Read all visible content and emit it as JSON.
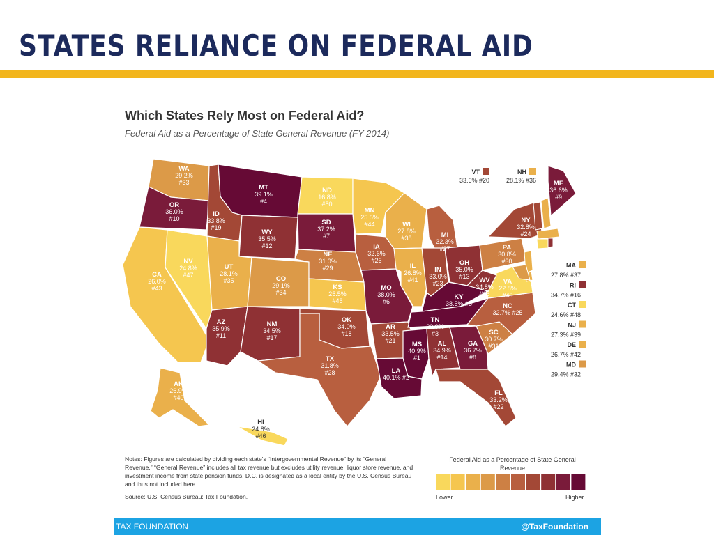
{
  "slide": {
    "title": "STATES RELIANCE ON FEDERAL AID"
  },
  "map": {
    "title": "Which States Rely Most on Federal Aid?",
    "subtitle": "Federal Aid as a Percentage of State General Revenue (FY 2014)"
  },
  "colors": {
    "title": "#1c2a5c",
    "rule": "#f2b51c",
    "footer": "#1ca3e3"
  },
  "scale": {
    "title": "Federal Aid as a Percentage of State General Revenue",
    "lower": "Lower",
    "higher": "Higher",
    "colors": [
      "#f9d85c",
      "#f5c64f",
      "#eab04b",
      "#dc9a48",
      "#cd8044",
      "#b85f3f",
      "#a34836",
      "#8f3134",
      "#7a1b3a",
      "#660a35"
    ]
  },
  "states": [
    {
      "abbr": "WA",
      "pct": "29.2%",
      "rank": "#33",
      "color": "#dc9a48"
    },
    {
      "abbr": "OR",
      "pct": "36.0%",
      "rank": "#10",
      "color": "#7a1b3a"
    },
    {
      "abbr": "CA",
      "pct": "26.0%",
      "rank": "#43",
      "color": "#f5c64f"
    },
    {
      "abbr": "NV",
      "pct": "24.8%",
      "rank": "#47",
      "color": "#f9d85c"
    },
    {
      "abbr": "ID",
      "pct": "33.8%",
      "rank": "#19",
      "color": "#a34836"
    },
    {
      "abbr": "MT",
      "pct": "39.1%",
      "rank": "#4",
      "color": "#660a35"
    },
    {
      "abbr": "WY",
      "pct": "35.5%",
      "rank": "#12",
      "color": "#8f3134"
    },
    {
      "abbr": "UT",
      "pct": "28.1%",
      "rank": "#35",
      "color": "#eab04b"
    },
    {
      "abbr": "AZ",
      "pct": "35.9%",
      "rank": "#11",
      "color": "#8f3134"
    },
    {
      "abbr": "CO",
      "pct": "29.1%",
      "rank": "#34",
      "color": "#dc9a48"
    },
    {
      "abbr": "NM",
      "pct": "34.5%",
      "rank": "#17",
      "color": "#8f3134"
    },
    {
      "abbr": "ND",
      "pct": "16.8%",
      "rank": "#50",
      "color": "#f9d85c"
    },
    {
      "abbr": "SD",
      "pct": "37.2%",
      "rank": "#7",
      "color": "#7a1b3a"
    },
    {
      "abbr": "NE",
      "pct": "31.0%",
      "rank": "#29",
      "color": "#cd8044"
    },
    {
      "abbr": "KS",
      "pct": "25.5%",
      "rank": "#45",
      "color": "#f5c64f"
    },
    {
      "abbr": "OK",
      "pct": "34.0%",
      "rank": "#18",
      "color": "#a34836"
    },
    {
      "abbr": "TX",
      "pct": "31.8%",
      "rank": "#28",
      "color": "#b85f3f"
    },
    {
      "abbr": "MN",
      "pct": "25.5%",
      "rank": "#44",
      "color": "#f5c64f"
    },
    {
      "abbr": "IA",
      "pct": "32.6%",
      "rank": "#26",
      "color": "#b85f3f"
    },
    {
      "abbr": "MO",
      "pct": "38.0%",
      "rank": "#6",
      "color": "#7a1b3a"
    },
    {
      "abbr": "AR",
      "pct": "33.5%",
      "rank": "#21",
      "color": "#a34836"
    },
    {
      "abbr": "LA",
      "pct": "40.1% #2",
      "rank": "",
      "color": "#660a35"
    },
    {
      "abbr": "WI",
      "pct": "27.8%",
      "rank": "#38",
      "color": "#eab04b"
    },
    {
      "abbr": "IL",
      "pct": "26.8%",
      "rank": "#41",
      "color": "#eab04b"
    },
    {
      "abbr": "MI",
      "pct": "32.3%",
      "rank": "#27",
      "color": "#b85f3f"
    },
    {
      "abbr": "IN",
      "pct": "33.0%",
      "rank": "#23",
      "color": "#a34836"
    },
    {
      "abbr": "OH",
      "pct": "35.0%",
      "rank": "#13",
      "color": "#8f3134"
    },
    {
      "abbr": "KY",
      "pct": "38.5% #5",
      "rank": "",
      "color": "#660a35"
    },
    {
      "abbr": "TN",
      "pct": "39.9%",
      "rank": "#3",
      "color": "#660a35"
    },
    {
      "abbr": "MS",
      "pct": "40.9%",
      "rank": "#1",
      "color": "#660a35"
    },
    {
      "abbr": "AL",
      "pct": "34.9%",
      "rank": "#14",
      "color": "#8f3134"
    },
    {
      "abbr": "GA",
      "pct": "36.7%",
      "rank": "#8",
      "color": "#7a1b3a"
    },
    {
      "abbr": "FL",
      "pct": "33.2%",
      "rank": "#22",
      "color": "#a34836"
    },
    {
      "abbr": "SC",
      "pct": "30.7%",
      "rank": "#31",
      "color": "#cd8044"
    },
    {
      "abbr": "NC",
      "pct": "32.7% #25",
      "rank": "",
      "color": "#b85f3f"
    },
    {
      "abbr": "VA",
      "pct": "22.8%",
      "rank": "#49",
      "color": "#f9d85c"
    },
    {
      "abbr": "WV",
      "pct": "34.8%",
      "rank": "#15",
      "color": "#8f3134"
    },
    {
      "abbr": "PA",
      "pct": "30.8%",
      "rank": "#30",
      "color": "#cd8044"
    },
    {
      "abbr": "NY",
      "pct": "32.8%",
      "rank": "#24",
      "color": "#a34836"
    },
    {
      "abbr": "ME",
      "pct": "36.6%",
      "rank": "#9",
      "color": "#7a1b3a"
    },
    {
      "abbr": "AK",
      "pct": "26.9%",
      "rank": "#40",
      "color": "#eab04b"
    },
    {
      "abbr": "HI",
      "pct": "24.8%",
      "rank": "#46",
      "color": "#f9d85c"
    }
  ],
  "small_states": [
    {
      "abbr": "VT",
      "value": "33.6% #20",
      "color": "#a34836"
    },
    {
      "abbr": "NH",
      "value": "28.1% #36",
      "color": "#eab04b"
    },
    {
      "abbr": "MA",
      "value": "27.8% #37",
      "color": "#eab04b"
    },
    {
      "abbr": "RI",
      "value": "34.7% #16",
      "color": "#8f3134"
    },
    {
      "abbr": "CT",
      "value": "24.6% #48",
      "color": "#f9d85c"
    },
    {
      "abbr": "NJ",
      "value": "27.3% #39",
      "color": "#eab04b"
    },
    {
      "abbr": "DE",
      "value": "26.7% #42",
      "color": "#eab04b"
    },
    {
      "abbr": "MD",
      "value": "29.4% #32",
      "color": "#dc9a48"
    }
  ],
  "notes": "Notes: Figures are calculated by dividing each state's “Intergovernmental Revenue” by its “General Revenue.” “General Revenue” includes all tax revenue but excludes utility revenue, liquor store revenue, and investment income from state pension funds. D.C. is designated as a local entity by the U.S. Census Bureau and thus not included here.",
  "source": "Source: U.S. Census Bureau; Tax Foundation.",
  "footer": {
    "left": "TAX FOUNDATION",
    "right": "@TaxFoundation"
  }
}
